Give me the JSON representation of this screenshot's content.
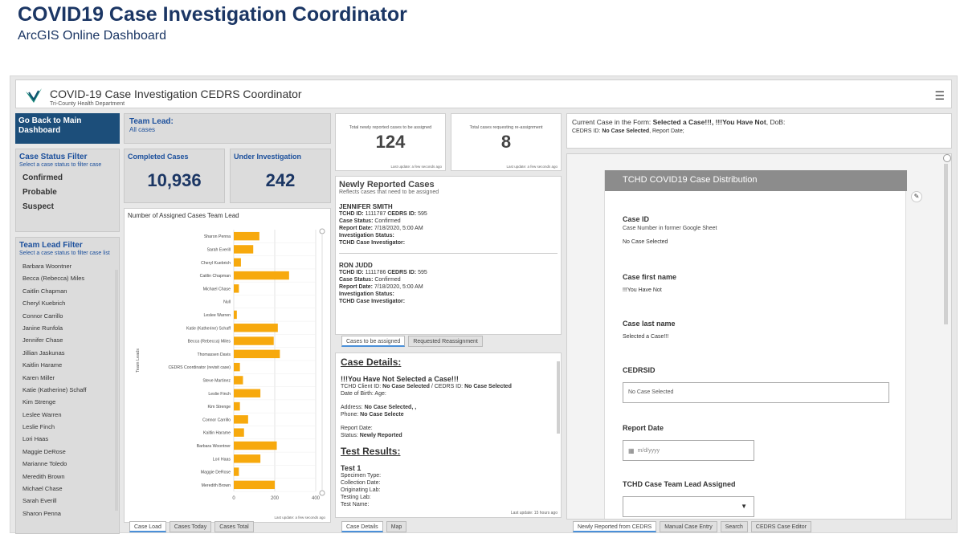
{
  "page": {
    "title": "COVID19 Case Investigation Coordinator",
    "subtitle": "ArcGIS Online Dashboard"
  },
  "header": {
    "title": "COVID-19 Case Investigation CEDRS Coordinator",
    "subtitle": "Tri-County Health Department",
    "menu_icon": "☰"
  },
  "back_button": "Go Back to Main Dashboard",
  "team_lead": {
    "label": "Team Lead:",
    "value": "All cases"
  },
  "status_filter": {
    "title": "Case Status Filter",
    "subtitle": "Select a case status to filter case",
    "items": [
      "Confirmed",
      "Probable",
      "Suspect"
    ]
  },
  "lead_filter": {
    "title": "Team Lead Filter",
    "subtitle": "Select a case status to filter case list",
    "items": [
      "Barbara Woontner",
      "Becca (Rebecca) Miles",
      "Caitlin Chapman",
      "Cheryl Kuebrich",
      "Connor Carrillo",
      "Janine Runfola",
      "Jennifer Chase",
      "Jillian Jaskunas",
      "Kaitlin Harame",
      "Karen Miller",
      "Katie (Katherine) Schaff",
      "Kim Strenge",
      "Leslee Warren",
      "Leslie Finch",
      "Lori Haas",
      "Maggie DeRose",
      "Marianne Toledo",
      "Meredith Brown",
      "Michael Chase",
      "Sarah Everill",
      "Sharon Penna"
    ]
  },
  "completed": {
    "label": "Completed Cases",
    "value": "10,936"
  },
  "under_investigation": {
    "label": "Under Investigation",
    "value": "242"
  },
  "chart_data": {
    "type": "bar",
    "orientation": "horizontal",
    "title": "Number of Assigned Cases Team Lead",
    "ylabel": "Team Leads",
    "xlabel": "",
    "xlim": [
      0,
      400
    ],
    "xticks": [
      "0",
      "200",
      "400"
    ],
    "categories": [
      "Sharon Penna",
      "Sarah Everill",
      "Cheryl Kuebrich",
      "Caitlin Chapman",
      "Michael Chase",
      "Null",
      "Leslee Warren",
      "Katie (Katherine) Schaff",
      "Becca (Rebecca) Miles",
      "Thomassen Davis",
      "CEDRS Coordinator (revisit case)",
      "Steve Martinez",
      "Leslie Finch",
      "Kim Strenge",
      "Connor Carrillo",
      "Kaitlin Harame",
      "Barbara Woontner",
      "Lori Haas",
      "Maggie DeRose",
      "Meredith Brown"
    ],
    "values": [
      125,
      95,
      35,
      270,
      25,
      0,
      15,
      215,
      195,
      225,
      30,
      45,
      130,
      30,
      70,
      50,
      210,
      130,
      25,
      200
    ],
    "footer": "Last update: a few seconds ago",
    "bar_color": "#f7a90d"
  },
  "chart_tabs": [
    "Case Load",
    "Cases Today",
    "Cases Total"
  ],
  "kpi_new": {
    "label": "Total newly reported cases to be assigned",
    "value": "124",
    "footer": "Last update: a few seconds ago"
  },
  "kpi_reassign": {
    "label": "Total cases requesting re-assignment",
    "value": "8",
    "footer": "Last update: a few seconds ago"
  },
  "new_cases": {
    "title": "Newly Reported Cases",
    "subtitle": "Reflects cases that need to be assigned",
    "cases": [
      {
        "name": "JENNIFER SMITH",
        "id_line_label": "TCHD ID:",
        "tchd_id": "1111787",
        "cedrs_label": "CEDRS ID:",
        "cedrs_id": "595",
        "status_label": "Case Status:",
        "status": "Confirmed",
        "date_label": "Report Date:",
        "date": "7/18/2020, 5:00 AM",
        "inv_label": "Investigation Status:",
        "invest_label": "TCHD Case Investigator:"
      },
      {
        "name": "RON JUDD",
        "id_line_label": "TCHD ID:",
        "tchd_id": "1111786",
        "cedrs_label": "CEDRS ID:",
        "cedrs_id": "595",
        "status_label": "Case Status:",
        "status": "Confirmed",
        "date_label": "Report Date:",
        "date": "7/18/2020, 5:00 AM",
        "inv_label": "Investigation Status:",
        "invest_label": "TCHD Case Investigator:"
      }
    ]
  },
  "case_tabs": [
    "Cases to be assigned",
    "Requested Reassignment"
  ],
  "case_details": {
    "heading": "Case Details:",
    "headline": "!!!You Have Not  Selected a Case!!!",
    "client_line_a": "TCHD Client ID:",
    "client_line_b": "No Case Selected",
    "client_line_c": "/ CEDRS ID:",
    "client_line_d": "No Case Selected",
    "dob_line": "Date of Birth:     Age:",
    "address_label": "Address:",
    "address_value": "No Case Selected, ,",
    "phone_label": "Phone:",
    "phone_value": "No Case Selecte",
    "report_date_label": "Report Date:",
    "status_label": "Status:",
    "status_value": "Newly Reported",
    "test_heading": "Test Results:",
    "test_title": "Test 1",
    "test_lines": [
      "Specimen Type:",
      "Collection Date:",
      "Originating Lab:",
      "Testing Lab:",
      "Test Name:"
    ],
    "footer": "Last update: 15 hours ago"
  },
  "details_tabs": [
    "Case Details",
    "Map"
  ],
  "current_case": {
    "prefix": "Current Case in the Form:",
    "selected": "Selected a Case!!!, !!!You Have Not",
    "dob": ",  DoB:",
    "cedrs_label": "CEDRS ID:",
    "cedrs_value": "No Case Selected",
    "report_date": ",  Report Date;"
  },
  "form": {
    "header": "TCHD COVID19 Case Distribution",
    "case_id_label": "Case ID",
    "case_id_help": "Case Number in former Google Sheet",
    "case_id_value": "No Case Selected",
    "first_name_label": "Case first name",
    "first_name_value": "!!!You Have Not",
    "last_name_label": "Case last name",
    "last_name_value": "Selected a Case!!!",
    "cedrsid_label": "CEDRSID",
    "cedrsid_value": "No Case Selected",
    "report_date_label": "Report Date",
    "report_date_placeholder": "m/d/yyyy",
    "team_lead_label": "TCHD Case Team Lead Assigned",
    "team_lead_value": ""
  },
  "form_tabs": [
    "Newly Reported from CEDRS",
    "Manual Case Entry",
    "Search",
    "CEDRS Case Editor"
  ]
}
